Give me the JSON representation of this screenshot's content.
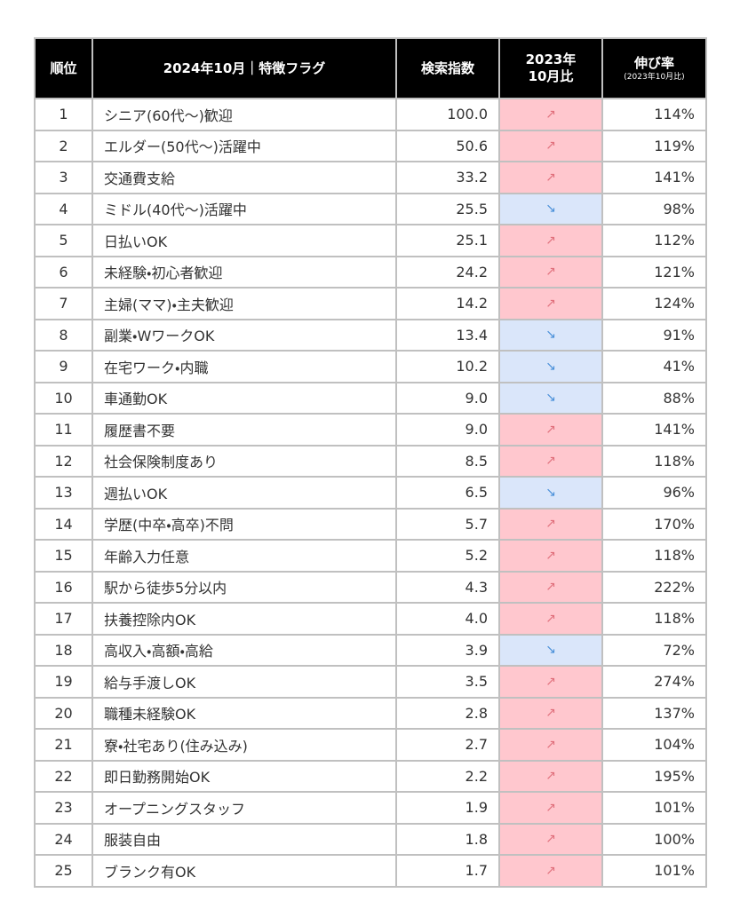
{
  "table": {
    "header": {
      "rank": "順位",
      "name": "2024年10月｜特徴フラグ",
      "index": "検索指数",
      "compare": [
        "2023年",
        "10月比"
      ],
      "growth": "伸び率",
      "growth_note": "(2023年10月比)",
      "background": "#000000",
      "text_color": "#ffffff"
    },
    "border_color": "#c0c0c0",
    "rows": [
      {
        "rank": 1,
        "name": "シニア(60代～)歓迎",
        "index": "100.0",
        "trend": "↗",
        "growth": "114%",
        "bg": "#ffc7ce",
        "arrow_color": "#e0707c"
      },
      {
        "rank": 2,
        "name": "エルダー(50代～)活躍中",
        "index": "50.6",
        "trend": "↗",
        "growth": "119%",
        "bg": "#ffc7ce",
        "arrow_color": "#e0707c"
      },
      {
        "rank": 3,
        "name": "交通費支給",
        "index": "33.2",
        "trend": "↗",
        "growth": "141%",
        "bg": "#ffc7ce",
        "arrow_color": "#e0707c"
      },
      {
        "rank": 4,
        "name": "ミドル(40代～)活躍中",
        "index": "25.5",
        "trend": "↘",
        "growth": "98%",
        "bg": "#dae6fa",
        "arrow_color": "#4a90d9"
      },
      {
        "rank": 5,
        "name": "日払いOK",
        "index": "25.1",
        "trend": "↗",
        "growth": "112%",
        "bg": "#ffc7ce",
        "arrow_color": "#e0707c"
      },
      {
        "rank": 6,
        "name": "未経験・初心者歓迎",
        "index": "24.2",
        "trend": "↗",
        "growth": "121%",
        "bg": "#ffc7ce",
        "arrow_color": "#e0707c"
      },
      {
        "rank": 7,
        "name": "主婦(ママ)・主夫歓迎",
        "index": "14.2",
        "trend": "↗",
        "growth": "124%",
        "bg": "#ffc7ce",
        "arrow_color": "#e0707c"
      },
      {
        "rank": 8,
        "name": "副業・WワークOK",
        "index": "13.4",
        "trend": "↘",
        "growth": "91%",
        "bg": "#dae6fa",
        "arrow_color": "#4a90d9"
      },
      {
        "rank": 9,
        "name": "在宅ワーク・内職",
        "index": "10.2",
        "trend": "↘",
        "growth": "41%",
        "bg": "#dae6fa",
        "arrow_color": "#4a90d9"
      },
      {
        "rank": 10,
        "name": "車通勤OK",
        "index": "9.0",
        "trend": "↘",
        "growth": "88%",
        "bg": "#dae6fa",
        "arrow_color": "#4a90d9"
      },
      {
        "rank": 11,
        "name": "履歴書不要",
        "index": "9.0",
        "trend": "↗",
        "growth": "141%",
        "bg": "#ffc7ce",
        "arrow_color": "#e0707c"
      },
      {
        "rank": 12,
        "name": "社会保険制度あり",
        "index": "8.5",
        "trend": "↗",
        "growth": "118%",
        "bg": "#ffc7ce",
        "arrow_color": "#e0707c"
      },
      {
        "rank": 13,
        "name": "週払いOK",
        "index": "6.5",
        "trend": "↘",
        "growth": "96%",
        "bg": "#dae6fa",
        "arrow_color": "#4a90d9"
      },
      {
        "rank": 14,
        "name": "学歴(中卒・高卒)不問",
        "index": "5.7",
        "trend": "↗",
        "growth": "170%",
        "bg": "#ffc7ce",
        "arrow_color": "#e0707c"
      },
      {
        "rank": 15,
        "name": "年齢入力任意",
        "index": "5.2",
        "trend": "↗",
        "growth": "118%",
        "bg": "#ffc7ce",
        "arrow_color": "#e0707c"
      },
      {
        "rank": 16,
        "name": "駅から徒歩5分以内",
        "index": "4.3",
        "trend": "↗",
        "growth": "222%",
        "bg": "#ffc7ce",
        "arrow_color": "#e0707c"
      },
      {
        "rank": 17,
        "name": "扶養控除内OK",
        "index": "4.0",
        "trend": "↗",
        "growth": "118%",
        "bg": "#ffc7ce",
        "arrow_color": "#e0707c"
      },
      {
        "rank": 18,
        "name": "高収入・高額・高給",
        "index": "3.9",
        "trend": "↘",
        "growth": "72%",
        "bg": "#dae6fa",
        "arrow_color": "#4a90d9"
      },
      {
        "rank": 19,
        "name": "給与手渡しOK",
        "index": "3.5",
        "trend": "↗",
        "growth": "274%",
        "bg": "#ffc7ce",
        "arrow_color": "#e0707c"
      },
      {
        "rank": 20,
        "name": "職種未経験OK",
        "index": "2.8",
        "trend": "↗",
        "growth": "137%",
        "bg": "#ffc7ce",
        "arrow_color": "#e0707c"
      },
      {
        "rank": 21,
        "name": "寮・社宅あり(住み込み)",
        "index": "2.7",
        "trend": "↗",
        "growth": "104%",
        "bg": "#ffc7ce",
        "arrow_color": "#e0707c"
      },
      {
        "rank": 22,
        "name": "即日勤務開始OK",
        "index": "2.2",
        "trend": "↗",
        "growth": "195%",
        "bg": "#ffc7ce",
        "arrow_color": "#e0707c"
      },
      {
        "rank": 23,
        "name": "オープニングスタッフ",
        "index": "1.9",
        "trend": "↗",
        "growth": "101%",
        "bg": "#ffc7ce",
        "arrow_color": "#e0707c"
      },
      {
        "rank": 24,
        "name": "服装自由",
        "index": "1.8",
        "trend": "↗",
        "growth": "100%",
        "bg": "#ffc7ce",
        "arrow_color": "#e0707c"
      },
      {
        "rank": 25,
        "name": "ブランク有OK",
        "index": "1.7",
        "trend": "↗",
        "growth": "101%",
        "bg": "#ffc7ce",
        "arrow_color": "#e0707c"
      }
    ]
  }
}
